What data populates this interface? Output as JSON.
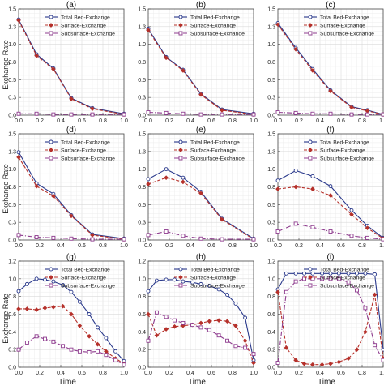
{
  "figure": {
    "ylabel": "Exchange Rate",
    "xlabel": "Time"
  },
  "chart_data": [
    {
      "panel": "(a)",
      "type": "line",
      "xlim": [
        0,
        1
      ],
      "ylim": [
        0,
        1.5
      ],
      "xticks": [
        "0.0",
        "0.2",
        "0.4",
        "0.6",
        "0.8",
        "1.0"
      ],
      "yticks": [
        "0.0",
        "0.3",
        "0.5",
        "0.8",
        "1.0",
        "1.3",
        "1.5"
      ],
      "legend": "top-right",
      "grid": true,
      "series": [
        {
          "name": "Total Bed-Exchange",
          "color": "#2b3a8c",
          "marker": "circle",
          "dash": "",
          "x": [
            0,
            0.17,
            0.33,
            0.5,
            0.7,
            1.0
          ],
          "y": [
            1.35,
            0.86,
            0.66,
            0.24,
            0.1,
            0.02
          ]
        },
        {
          "name": "Surface-Exchange",
          "color": "#b5302a",
          "marker": "diamond",
          "dash": "4,2",
          "x": [
            0,
            0.17,
            0.33,
            0.5,
            0.7,
            1.0
          ],
          "y": [
            1.34,
            0.84,
            0.65,
            0.23,
            0.09,
            0.01
          ]
        },
        {
          "name": "Subsurface-Exchange",
          "color": "#8e3b8e",
          "marker": "square",
          "dash": "6,2,1,2",
          "x": [
            0,
            0.17,
            0.33,
            0.5,
            0.7,
            1.0
          ],
          "y": [
            0.02,
            0.02,
            0.01,
            0.01,
            0.01,
            0.01
          ]
        }
      ]
    },
    {
      "panel": "(b)",
      "type": "line",
      "xlim": [
        0,
        1
      ],
      "ylim": [
        0,
        1.5
      ],
      "xticks": [
        "0.0",
        "0.2",
        "0.4",
        "0.6",
        "0.8",
        "1.0"
      ],
      "yticks": [
        "0.0",
        "0.3",
        "0.5",
        "0.8",
        "1.0",
        "1.3",
        "1.5"
      ],
      "legend": "top-right",
      "grid": true,
      "series": [
        {
          "name": "Total Bed-Exchange",
          "color": "#2b3a8c",
          "marker": "circle",
          "dash": "",
          "x": [
            0,
            0.17,
            0.33,
            0.5,
            0.7,
            1.0
          ],
          "y": [
            1.22,
            0.82,
            0.64,
            0.3,
            0.08,
            0.02
          ]
        },
        {
          "name": "Surface-Exchange",
          "color": "#b5302a",
          "marker": "diamond",
          "dash": "4,2",
          "x": [
            0,
            0.17,
            0.33,
            0.5,
            0.7,
            1.0
          ],
          "y": [
            1.2,
            0.81,
            0.63,
            0.29,
            0.07,
            0.01
          ]
        },
        {
          "name": "Subsurface-Exchange",
          "color": "#8e3b8e",
          "marker": "square",
          "dash": "6,2,1,2",
          "x": [
            0,
            0.17,
            0.33,
            0.5,
            0.7,
            1.0
          ],
          "y": [
            0.04,
            0.03,
            0.02,
            0.01,
            0.01,
            0.01
          ]
        }
      ]
    },
    {
      "panel": "(c)",
      "type": "line",
      "xlim": [
        0,
        1
      ],
      "ylim": [
        0,
        1.5
      ],
      "xticks": [
        "0.0",
        "0.2",
        "0.4",
        "0.6",
        "0.8",
        "1.0"
      ],
      "yticks": [
        "0.0",
        "0.3",
        "0.5",
        "0.8",
        "1.0",
        "1.3",
        "1.5"
      ],
      "legend": "top-right",
      "grid": true,
      "series": [
        {
          "name": "Total Bed-Exchange",
          "color": "#2b3a8c",
          "marker": "circle",
          "dash": "",
          "x": [
            0,
            0.17,
            0.33,
            0.5,
            0.7,
            0.85,
            1.0
          ],
          "y": [
            1.3,
            0.95,
            0.65,
            0.35,
            0.12,
            0.07,
            0.01
          ]
        },
        {
          "name": "Surface-Exchange",
          "color": "#b5302a",
          "marker": "diamond",
          "dash": "4,2",
          "x": [
            0,
            0.17,
            0.33,
            0.5,
            0.7,
            0.85,
            1.0
          ],
          "y": [
            1.28,
            0.93,
            0.63,
            0.34,
            0.11,
            0.06,
            0.01
          ]
        },
        {
          "name": "Subsurface-Exchange",
          "color": "#8e3b8e",
          "marker": "square",
          "dash": "6,2,1,2",
          "x": [
            0,
            0.17,
            0.33,
            0.5,
            0.7,
            0.85,
            1.0
          ],
          "y": [
            0.04,
            0.03,
            0.02,
            0.02,
            0.01,
            0.01,
            0.01
          ]
        }
      ]
    },
    {
      "panel": "(d)",
      "type": "line",
      "xlim": [
        0,
        1
      ],
      "ylim": [
        0,
        1.5
      ],
      "xticks": [
        "0.0",
        "0.2",
        "0.4",
        "0.6",
        "0.8",
        "1.0"
      ],
      "yticks": [
        "0.0",
        "0.3",
        "0.5",
        "0.8",
        "1.0",
        "1.3",
        "1.5"
      ],
      "legend": "top-right",
      "grid": true,
      "series": [
        {
          "name": "Total Bed-Exchange",
          "color": "#2b3a8c",
          "marker": "circle",
          "dash": "",
          "x": [
            0,
            0.17,
            0.33,
            0.5,
            0.7,
            1.0
          ],
          "y": [
            1.24,
            0.8,
            0.65,
            0.35,
            0.08,
            0.02
          ]
        },
        {
          "name": "Surface-Exchange",
          "color": "#b5302a",
          "marker": "diamond",
          "dash": "4,2",
          "x": [
            0,
            0.17,
            0.33,
            0.5,
            0.7,
            1.0
          ],
          "y": [
            1.17,
            0.76,
            0.62,
            0.34,
            0.07,
            0.01
          ]
        },
        {
          "name": "Subsurface-Exchange",
          "color": "#8e3b8e",
          "marker": "square",
          "dash": "6,2,1,2",
          "x": [
            0,
            0.17,
            0.33,
            0.5,
            0.7,
            1.0
          ],
          "y": [
            0.07,
            0.04,
            0.03,
            0.02,
            0.01,
            0.01
          ]
        }
      ]
    },
    {
      "panel": "(e)",
      "type": "line",
      "xlim": [
        0,
        1
      ],
      "ylim": [
        0,
        1.5
      ],
      "xticks": [
        "0.0",
        "0.2",
        "0.4",
        "0.6",
        "0.8",
        "1.0"
      ],
      "yticks": [
        "0.0",
        "0.3",
        "0.5",
        "0.8",
        "1.0",
        "1.3",
        "1.5"
      ],
      "legend": "top-right",
      "grid": true,
      "series": [
        {
          "name": "Total Bed-Exchange",
          "color": "#2b3a8c",
          "marker": "circle",
          "dash": "",
          "x": [
            0,
            0.17,
            0.33,
            0.5,
            0.7,
            1.0
          ],
          "y": [
            0.86,
            1.0,
            0.88,
            0.68,
            0.3,
            0.02
          ]
        },
        {
          "name": "Surface-Exchange",
          "color": "#b5302a",
          "marker": "diamond",
          "dash": "4,2",
          "x": [
            0,
            0.17,
            0.33,
            0.5,
            0.7,
            1.0
          ],
          "y": [
            0.79,
            0.88,
            0.82,
            0.66,
            0.29,
            0.01
          ]
        },
        {
          "name": "Subsurface-Exchange",
          "color": "#8e3b8e",
          "marker": "square",
          "dash": "6,2,1,2",
          "x": [
            0,
            0.17,
            0.33,
            0.5,
            0.7,
            1.0
          ],
          "y": [
            0.07,
            0.12,
            0.06,
            0.02,
            0.01,
            0.01
          ]
        }
      ]
    },
    {
      "panel": "(f)",
      "type": "line",
      "xlim": [
        0,
        1
      ],
      "ylim": [
        0,
        1.5
      ],
      "xticks": [
        "0.0",
        "0.2",
        "0.4",
        "0.6",
        "0.8",
        "1.0"
      ],
      "yticks": [
        "0.0",
        "0.3",
        "0.5",
        "0.8",
        "1.0",
        "1.3",
        "1.5"
      ],
      "legend": "top-right",
      "grid": true,
      "series": [
        {
          "name": "Total Bed-Exchange",
          "color": "#2b3a8c",
          "marker": "circle",
          "dash": "",
          "x": [
            0,
            0.17,
            0.33,
            0.5,
            0.7,
            0.85,
            1.0
          ],
          "y": [
            0.84,
            0.98,
            0.9,
            0.76,
            0.42,
            0.2,
            0.03
          ]
        },
        {
          "name": "Surface-Exchange",
          "color": "#b5302a",
          "marker": "diamond",
          "dash": "4,2",
          "x": [
            0,
            0.17,
            0.33,
            0.5,
            0.7,
            0.85,
            1.0
          ],
          "y": [
            0.72,
            0.75,
            0.72,
            0.63,
            0.36,
            0.17,
            0.02
          ]
        },
        {
          "name": "Subsurface-Exchange",
          "color": "#8e3b8e",
          "marker": "square",
          "dash": "6,2,1,2",
          "x": [
            0,
            0.17,
            0.33,
            0.5,
            0.7,
            0.85,
            1.0
          ],
          "y": [
            0.12,
            0.23,
            0.18,
            0.12,
            0.06,
            0.03,
            0.01
          ]
        }
      ]
    },
    {
      "panel": "(g)",
      "type": "line",
      "xlim": [
        0,
        1
      ],
      "ylim": [
        0,
        1.2
      ],
      "xticks": [
        "0.0",
        "0.2",
        "0.4",
        "0.6",
        "0.8",
        "1.0"
      ],
      "yticks": [
        "0.0",
        "0.2",
        "0.4",
        "0.6",
        "0.8",
        "1.0",
        "1.2"
      ],
      "legend": "top-right",
      "grid": true,
      "series": [
        {
          "name": "Total Bed-Exchange",
          "color": "#2b3a8c",
          "marker": "circle",
          "dash": "",
          "x": [
            0,
            0.08,
            0.17,
            0.25,
            0.33,
            0.42,
            0.5,
            0.58,
            0.67,
            0.75,
            0.83,
            0.92,
            1.0
          ],
          "y": [
            0.86,
            0.94,
            1.0,
            0.99,
            0.97,
            0.93,
            0.85,
            0.74,
            0.6,
            0.45,
            0.33,
            0.18,
            0.07
          ]
        },
        {
          "name": "Surface-Exchange",
          "color": "#b5302a",
          "marker": "diamond",
          "dash": "4,2",
          "x": [
            0,
            0.08,
            0.17,
            0.25,
            0.33,
            0.42,
            0.5,
            0.58,
            0.67,
            0.75,
            0.83,
            0.92,
            1.0
          ],
          "y": [
            0.66,
            0.66,
            0.65,
            0.67,
            0.68,
            0.69,
            0.6,
            0.47,
            0.35,
            0.26,
            0.18,
            0.1,
            0.04
          ]
        },
        {
          "name": "Subsurface-Exchange",
          "color": "#8e3b8e",
          "marker": "square",
          "dash": "6,2,1,2",
          "x": [
            0,
            0.08,
            0.17,
            0.25,
            0.33,
            0.42,
            0.5,
            0.58,
            0.67,
            0.75,
            0.83,
            0.92,
            1.0
          ],
          "y": [
            0.2,
            0.28,
            0.35,
            0.32,
            0.29,
            0.24,
            0.2,
            0.18,
            0.17,
            0.18,
            0.14,
            0.08,
            0.03
          ]
        }
      ]
    },
    {
      "panel": "(h)",
      "type": "line",
      "xlim": [
        0,
        1
      ],
      "ylim": [
        0,
        1.2
      ],
      "xticks": [
        "0.0",
        "0.2",
        "0.4",
        "0.6",
        "0.8",
        "1.0"
      ],
      "yticks": [
        "0.0",
        "0.2",
        "0.4",
        "0.6",
        "0.8",
        "1.0",
        "1.2"
      ],
      "legend": "top-right",
      "grid": true,
      "series": [
        {
          "name": "Total Bed-Exchange",
          "color": "#2b3a8c",
          "marker": "circle",
          "dash": "",
          "x": [
            0,
            0.08,
            0.17,
            0.25,
            0.33,
            0.42,
            0.5,
            0.58,
            0.67,
            0.75,
            0.83,
            0.92,
            1.0
          ],
          "y": [
            0.86,
            0.98,
            0.99,
            0.99,
            0.97,
            0.96,
            0.94,
            0.92,
            0.88,
            0.82,
            0.72,
            0.56,
            0.08
          ]
        },
        {
          "name": "Surface-Exchange",
          "color": "#b5302a",
          "marker": "diamond",
          "dash": "4,2",
          "x": [
            0,
            0.08,
            0.17,
            0.25,
            0.33,
            0.42,
            0.5,
            0.58,
            0.67,
            0.75,
            0.83,
            0.92,
            1.0
          ],
          "y": [
            0.6,
            0.36,
            0.43,
            0.46,
            0.47,
            0.48,
            0.5,
            0.52,
            0.53,
            0.52,
            0.47,
            0.3,
            0.05
          ]
        },
        {
          "name": "Subsurface-Exchange",
          "color": "#8e3b8e",
          "marker": "square",
          "dash": "6,2,1,2",
          "x": [
            0,
            0.08,
            0.17,
            0.25,
            0.33,
            0.42,
            0.5,
            0.58,
            0.67,
            0.75,
            0.83,
            0.92,
            1.0
          ],
          "y": [
            0.3,
            0.62,
            0.57,
            0.53,
            0.5,
            0.48,
            0.45,
            0.42,
            0.36,
            0.3,
            0.24,
            0.22,
            0.15
          ]
        }
      ]
    },
    {
      "panel": "(i)",
      "type": "line",
      "xlim": [
        0,
        1
      ],
      "ylim": [
        0,
        1.2
      ],
      "xticks": [
        "0.0",
        "0.2",
        "0.4",
        "0.6",
        "0.8",
        "1.0"
      ],
      "yticks": [
        "0.0",
        "0.2",
        "0.4",
        "0.6",
        "0.8",
        "1.0",
        "1.2"
      ],
      "legend": "top-right",
      "grid": true,
      "series": [
        {
          "name": "Total Bed-Exchange",
          "color": "#2b3a8c",
          "marker": "circle",
          "dash": "",
          "x": [
            0,
            0.08,
            0.17,
            0.25,
            0.33,
            0.42,
            0.5,
            0.58,
            0.67,
            0.75,
            0.83,
            0.92,
            1.0
          ],
          "y": [
            0.88,
            1.06,
            1.06,
            1.06,
            1.06,
            1.06,
            1.06,
            1.06,
            1.06,
            1.06,
            1.06,
            1.05,
            0.2
          ]
        },
        {
          "name": "Surface-Exchange",
          "color": "#b5302a",
          "marker": "diamond",
          "dash": "4,2",
          "x": [
            0,
            0.08,
            0.17,
            0.25,
            0.33,
            0.42,
            0.5,
            0.58,
            0.67,
            0.75,
            0.83,
            0.92,
            1.0
          ],
          "y": [
            0.85,
            0.22,
            0.08,
            0.04,
            0.03,
            0.03,
            0.04,
            0.06,
            0.1,
            0.2,
            0.4,
            0.82,
            0.1
          ]
        },
        {
          "name": "Subsurface-Exchange",
          "color": "#8e3b8e",
          "marker": "square",
          "dash": "6,2,1,2",
          "x": [
            0,
            0.08,
            0.17,
            0.25,
            0.33,
            0.42,
            0.5,
            0.58,
            0.67,
            0.75,
            0.83,
            0.92,
            1.0
          ],
          "y": [
            0.05,
            0.85,
            0.97,
            1.0,
            1.0,
            1.0,
            1.0,
            1.0,
            0.96,
            0.87,
            0.67,
            0.25,
            0.08
          ]
        }
      ]
    }
  ]
}
